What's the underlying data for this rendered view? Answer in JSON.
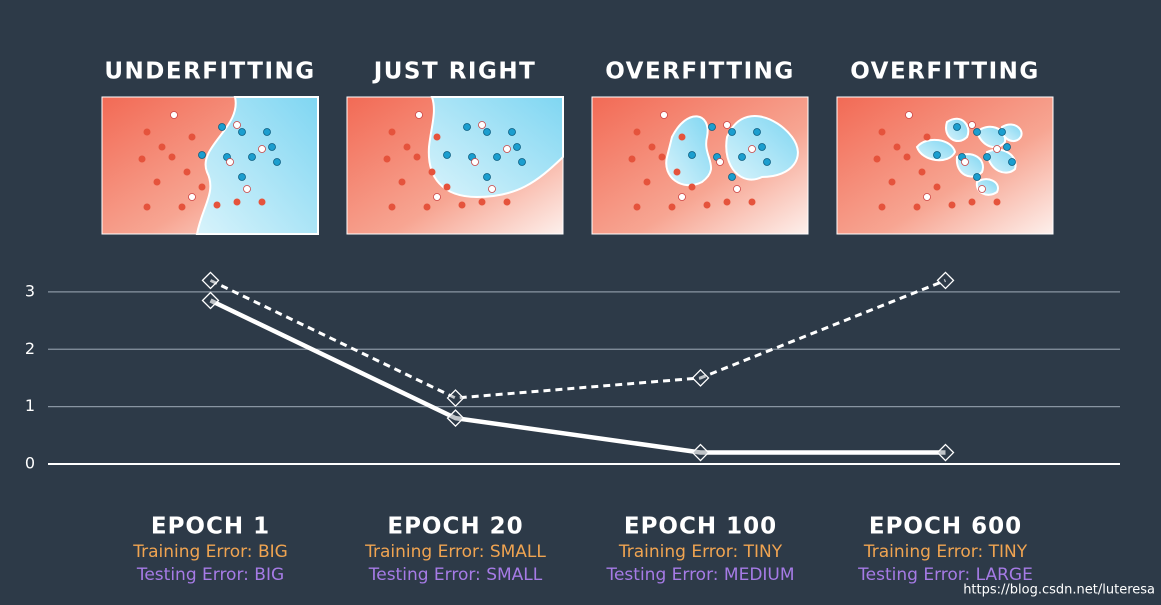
{
  "panels": [
    "UNDERFITTING",
    "JUST RIGHT",
    "OVERFITTING",
    "OVERFITTING"
  ],
  "chart_data": {
    "type": "line",
    "categories": [
      "EPOCH 1",
      "EPOCH 20",
      "EPOCH 100",
      "EPOCH 600"
    ],
    "series": [
      {
        "color": "#ffffff",
        "style": "solid",
        "values": [
          2.85,
          0.8,
          0.2,
          0.2
        ]
      },
      {
        "color": "#ffffff",
        "style": "dashed",
        "values": [
          3.2,
          1.15,
          1.5,
          3.2
        ]
      }
    ],
    "ylim": [
      0,
      3.8
    ],
    "yticks": [
      0,
      1,
      2,
      3
    ],
    "grid": true
  },
  "captions": [
    {
      "training": "Training Error: BIG",
      "testing": "Testing Error: BIG"
    },
    {
      "training": "Training Error: SMALL",
      "testing": "Testing Error: SMALL"
    },
    {
      "training": "Training Error: TINY",
      "testing": "Testing Error: MEDIUM"
    },
    {
      "training": "Training Error: TINY",
      "testing": "Testing Error: LARGE"
    }
  ],
  "watermark": "https://blog.csdn.net/luteresa"
}
